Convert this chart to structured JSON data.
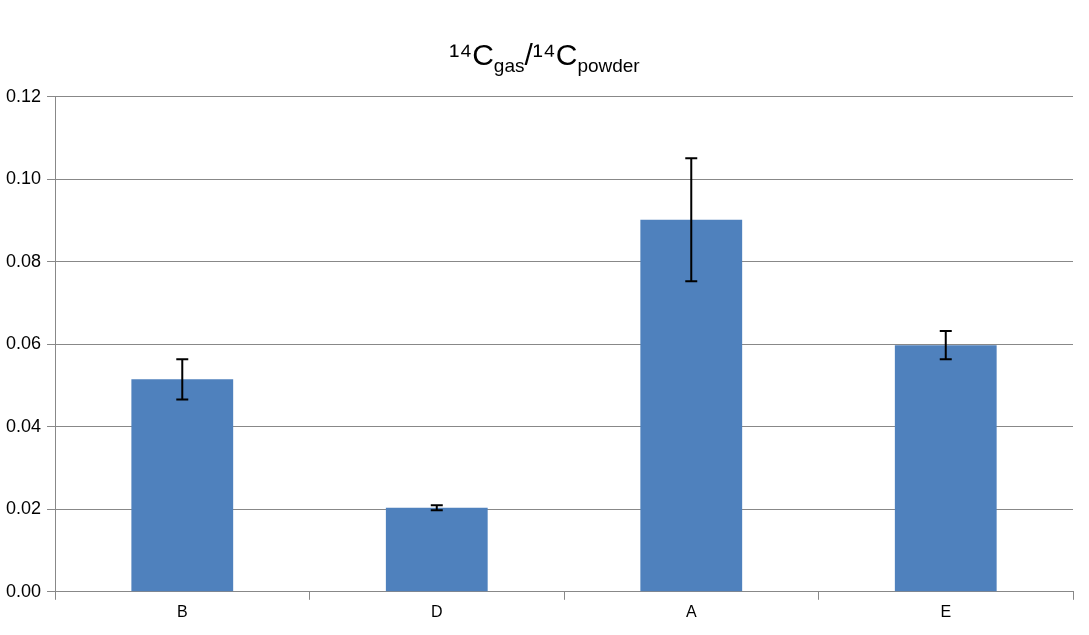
{
  "chart_data": {
    "type": "bar",
    "title": "¹⁴C$_{gas}$/¹⁴C$_{powder}$",
    "categories": [
      "B",
      "D",
      "A",
      "E"
    ],
    "values": [
      0.0515,
      0.0204,
      0.0902,
      0.0598
    ],
    "errors": [
      0.0049,
      0.0006,
      0.0149,
      0.0034
    ],
    "color": "#4f81bd",
    "ylim": [
      0,
      0.12
    ],
    "yticks": [
      {
        "value": 0,
        "label": "0.00"
      },
      {
        "value": 0.02,
        "label": "0.02"
      },
      {
        "value": 0.04,
        "label": "0.04"
      },
      {
        "value": 0.06,
        "label": "0.06"
      },
      {
        "value": 0.08,
        "label": "0.08"
      },
      {
        "value": 0.1,
        "label": "0.10"
      },
      {
        "value": 0.12,
        "label": "0.12"
      }
    ],
    "grid": "y",
    "legend": false
  }
}
